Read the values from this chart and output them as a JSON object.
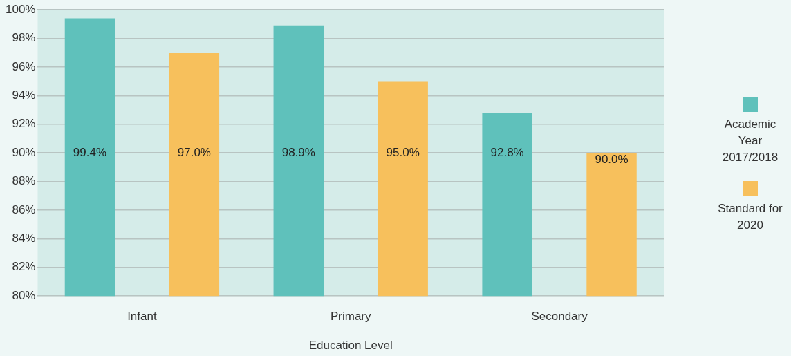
{
  "chart_data": {
    "type": "bar",
    "xlabel": "Education Level",
    "categories": [
      "Infant",
      "Primary",
      "Secondary"
    ],
    "series": [
      {
        "name": "Academic Year 2017/2018",
        "color": "#5fc1bb",
        "values": [
          99.4,
          98.9,
          92.8
        ],
        "value_labels": [
          "99.4%",
          "98.9%",
          "92.8%"
        ]
      },
      {
        "name": "Standard for 2020",
        "color": "#f7c05c",
        "values": [
          97.0,
          95.0,
          90.0
        ],
        "value_labels": [
          "97.0%",
          "95.0%",
          "90.0%"
        ]
      }
    ],
    "ylim": [
      80,
      100
    ],
    "yticks": [
      {
        "value": 80,
        "label": "80%"
      },
      {
        "value": 82,
        "label": "82%"
      },
      {
        "value": 84,
        "label": "84%"
      },
      {
        "value": 86,
        "label": "86%"
      },
      {
        "value": 88,
        "label": "88%"
      },
      {
        "value": 90,
        "label": "90%"
      },
      {
        "value": 92,
        "label": "92%"
      },
      {
        "value": 94,
        "label": "94%"
      },
      {
        "value": 96,
        "label": "96%"
      },
      {
        "value": 98,
        "label": "98%"
      },
      {
        "value": 100,
        "label": "100%"
      }
    ],
    "grid": "y",
    "legend": "right"
  }
}
